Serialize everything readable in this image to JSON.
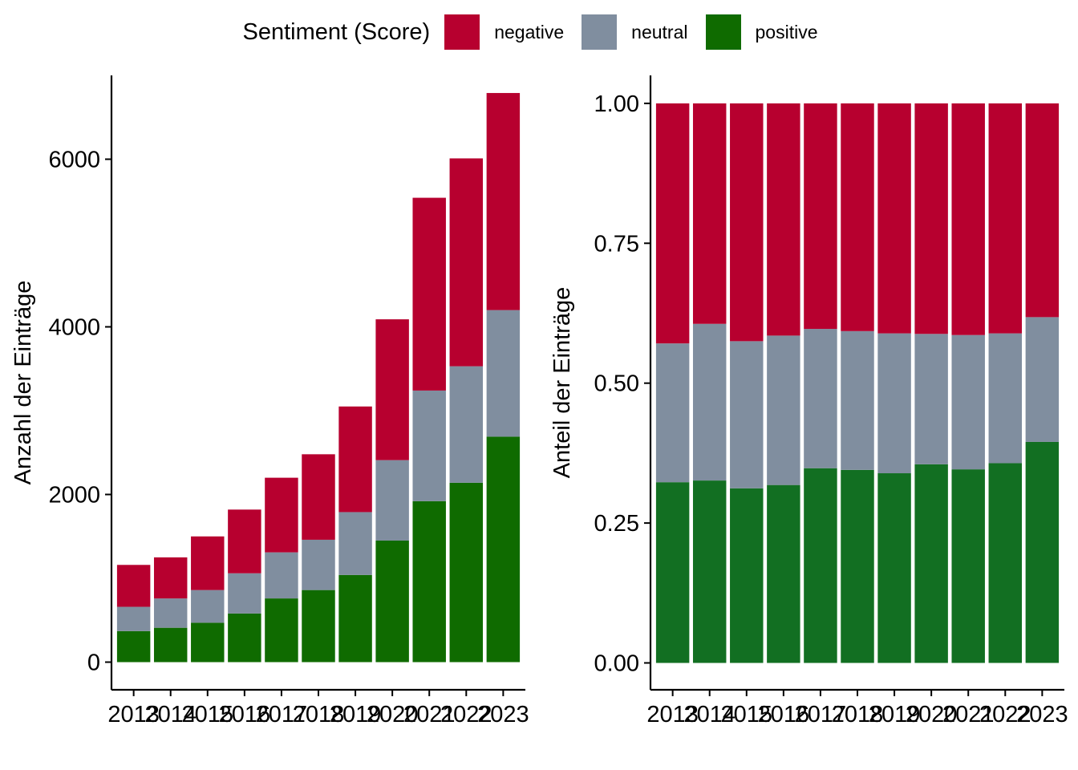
{
  "legend": {
    "title": "Sentiment (Score)",
    "items": [
      {
        "label": "negative",
        "color": "#B7002F"
      },
      {
        "label": "neutral",
        "color": "#808E9F"
      },
      {
        "label": "positive",
        "color": "#0F6B00"
      }
    ]
  },
  "chart_data": [
    {
      "type": "bar",
      "stacked": true,
      "categories": [
        "2013",
        "2014",
        "2015",
        "2016",
        "2017",
        "2018",
        "2019",
        "2020",
        "2021",
        "2022",
        "2023"
      ],
      "series": [
        {
          "name": "positive",
          "color": "#0F6B00",
          "values": [
            370,
            410,
            470,
            580,
            760,
            860,
            1040,
            1450,
            1920,
            2140,
            2690
          ]
        },
        {
          "name": "neutral",
          "color": "#808E9F",
          "values": [
            290,
            350,
            390,
            480,
            550,
            600,
            750,
            960,
            1320,
            1390,
            1510
          ]
        },
        {
          "name": "negative",
          "color": "#B7002F",
          "values": [
            500,
            490,
            640,
            760,
            890,
            1020,
            1260,
            1680,
            2300,
            2480,
            2590
          ]
        }
      ],
      "xlabel": "",
      "ylabel": "Anzahl der Einträge",
      "ylim": [
        -330,
        7000
      ],
      "yticks": [
        0,
        2000,
        4000,
        6000
      ],
      "grid": false
    },
    {
      "type": "bar",
      "stacked": true,
      "categories": [
        "2013",
        "2014",
        "2015",
        "2016",
        "2017",
        "2018",
        "2019",
        "2020",
        "2021",
        "2022",
        "2023"
      ],
      "series": [
        {
          "name": "positive",
          "color": "#126F22",
          "values": [
            0.323,
            0.326,
            0.312,
            0.318,
            0.348,
            0.345,
            0.339,
            0.355,
            0.346,
            0.357,
            0.395
          ]
        },
        {
          "name": "neutral",
          "color": "#808E9F",
          "values": [
            0.248,
            0.28,
            0.263,
            0.267,
            0.249,
            0.248,
            0.25,
            0.233,
            0.24,
            0.232,
            0.223
          ]
        },
        {
          "name": "negative",
          "color": "#B7002F",
          "values": [
            0.429,
            0.394,
            0.425,
            0.415,
            0.403,
            0.407,
            0.411,
            0.412,
            0.414,
            0.411,
            0.382
          ]
        }
      ],
      "xlabel": "",
      "ylabel": "Anteil der Einträge",
      "ylim": [
        -0.048,
        1.05
      ],
      "yticks": [
        0.0,
        0.25,
        0.5,
        0.75,
        1.0
      ],
      "ytick_labels": [
        "0.00",
        "0.25",
        "0.50",
        "0.75",
        "1.00"
      ],
      "grid": false
    }
  ]
}
